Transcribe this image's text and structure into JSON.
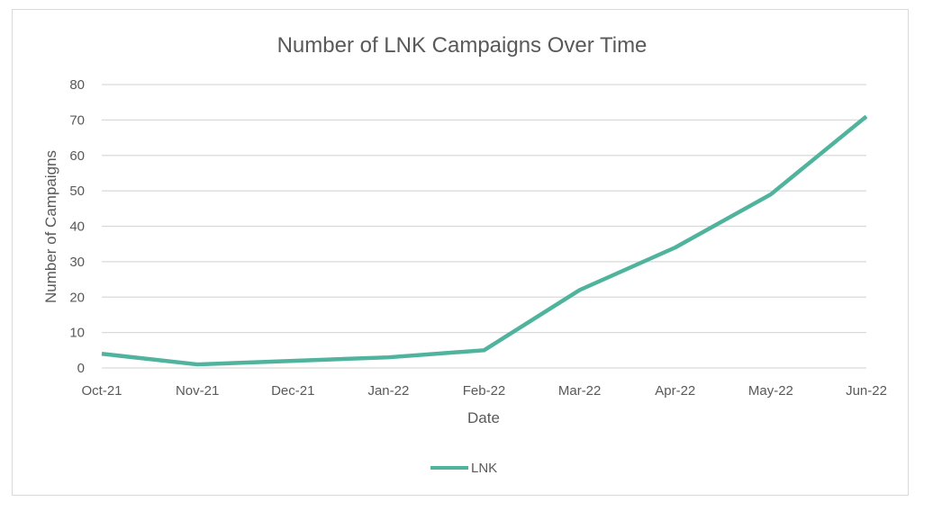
{
  "chart_data": {
    "type": "line",
    "title": "Number of LNK Campaigns Over Time",
    "xlabel": "Date",
    "ylabel": "Number of Campaigns",
    "categories": [
      "Oct-21",
      "Nov-21",
      "Dec-21",
      "Jan-22",
      "Feb-22",
      "Mar-22",
      "Apr-22",
      "May-22",
      "Jun-22"
    ],
    "series": [
      {
        "name": "LNK",
        "values": [
          4,
          1,
          2,
          3,
          5,
          22,
          34,
          49,
          71
        ],
        "color": "#4fb39d"
      }
    ],
    "ylim": [
      0,
      80
    ],
    "yticks": [
      "0",
      "10",
      "20",
      "30",
      "40",
      "50",
      "60",
      "70",
      "80"
    ],
    "grid": true,
    "legend": "bottom"
  }
}
